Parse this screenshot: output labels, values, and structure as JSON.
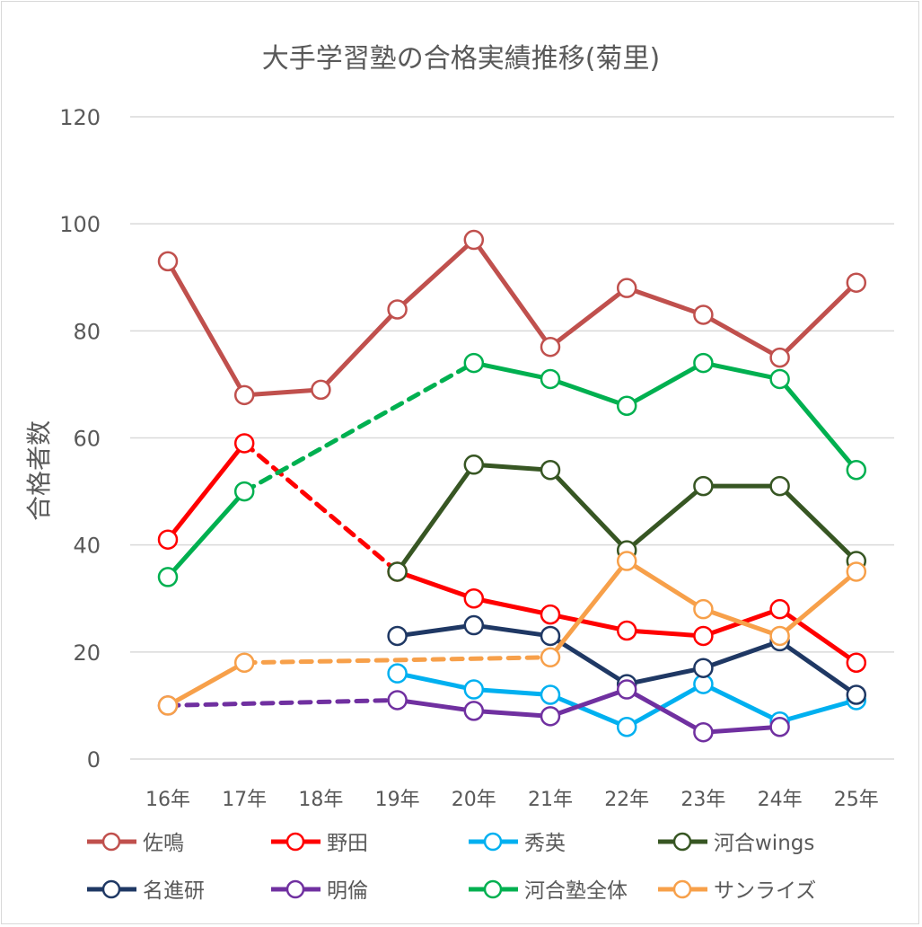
{
  "chart_data": {
    "type": "line",
    "title": "大手学習塾の合格実績推移(菊里)",
    "xlabel": "",
    "ylabel": "合格者数",
    "ylim": [
      0,
      120
    ],
    "yticks": [
      0,
      20,
      40,
      60,
      80,
      100,
      120
    ],
    "grid": true,
    "legend_position": "bottom",
    "categories": [
      "16年",
      "17年",
      "18年",
      "19年",
      "20年",
      "21年",
      "22年",
      "23年",
      "24年",
      "25年"
    ],
    "series": [
      {
        "name": "佐鳴",
        "color": "#C0504D",
        "values": [
          93,
          68,
          69,
          84,
          97,
          77,
          88,
          83,
          75,
          89
        ]
      },
      {
        "name": "野田",
        "color": "#FF0000",
        "values": [
          41,
          59,
          null,
          35,
          30,
          27,
          24,
          23,
          28,
          18
        ]
      },
      {
        "name": "秀英",
        "color": "#00B0F0",
        "values": [
          null,
          null,
          null,
          16,
          13,
          12,
          6,
          14,
          7,
          11
        ]
      },
      {
        "name": "河合wings",
        "color": "#375623",
        "values": [
          null,
          null,
          null,
          35,
          55,
          54,
          39,
          51,
          51,
          37
        ]
      },
      {
        "name": "名進研",
        "color": "#1F3864",
        "values": [
          null,
          null,
          null,
          23,
          25,
          23,
          14,
          17,
          22,
          12
        ]
      },
      {
        "name": "明倫",
        "color": "#7030A0",
        "values": [
          10,
          null,
          null,
          11,
          9,
          8,
          13,
          5,
          6,
          null
        ]
      },
      {
        "name": "河合塾全体",
        "color": "#00B050",
        "values": [
          34,
          50,
          null,
          null,
          74,
          71,
          66,
          74,
          71,
          54
        ]
      },
      {
        "name": "サンライズ",
        "color": "#F7A04A",
        "values": [
          10,
          18,
          null,
          null,
          null,
          19,
          37,
          28,
          23,
          35
        ]
      }
    ]
  }
}
